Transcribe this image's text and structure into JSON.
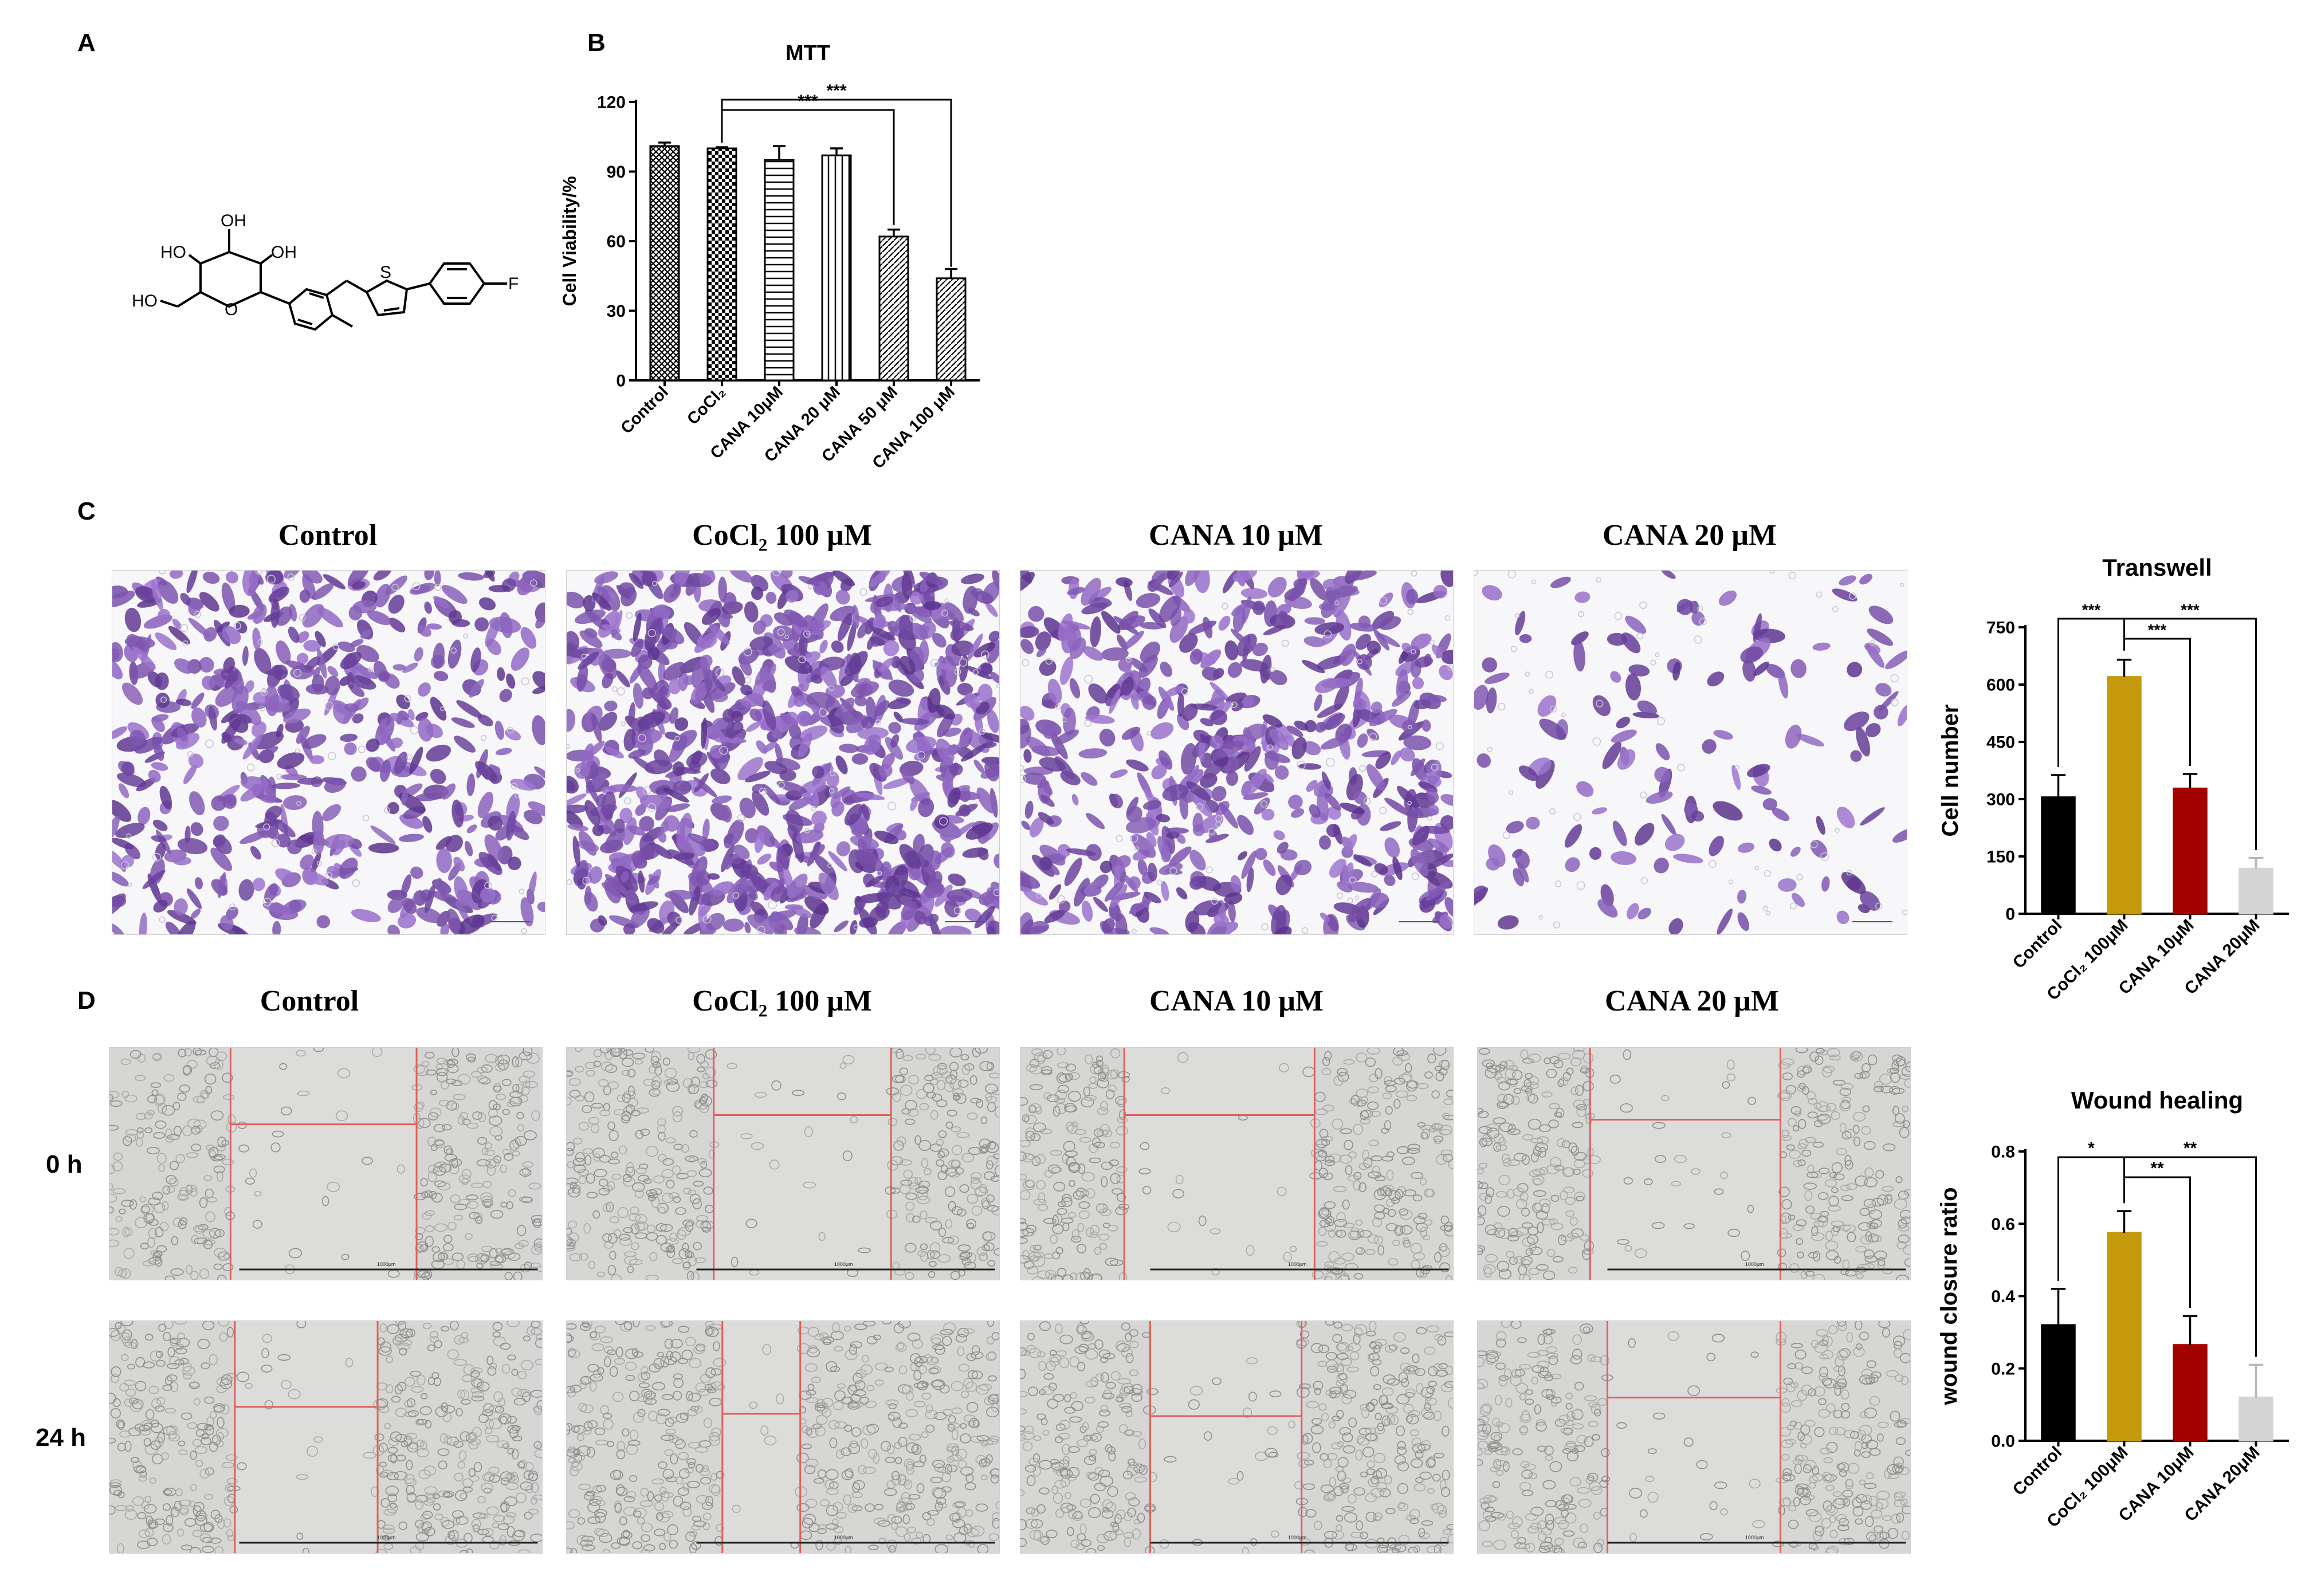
{
  "panels": {
    "a": {
      "letter": "A"
    },
    "b": {
      "letter": "B"
    },
    "c": {
      "letter": "C"
    },
    "d": {
      "letter": "D"
    }
  },
  "molecule": {
    "labels": [
      "OH",
      "HO",
      "OH",
      "HO",
      "O",
      "S",
      "F"
    ]
  },
  "colors": {
    "control": "#000000",
    "cocl2": "#c49a0c",
    "cana10": "#a30000",
    "cana20": "#d4d4d4",
    "crystal_violet": "#5a3b7e",
    "scratch_line": "#e0605a"
  },
  "transwell_images": {
    "titles": [
      "Control",
      "CoCl₂ 100 μM",
      "CANA 10 μM",
      "CANA 20 μM"
    ],
    "cell_density": [
      0.55,
      0.9,
      0.6,
      0.15
    ]
  },
  "wound_images": {
    "titles": [
      "Control",
      "CoCl₂ 100 μM",
      "CANA 10 μM",
      "CANA 20 μM"
    ],
    "rows": [
      "0 h",
      "24 h"
    ],
    "scale_label": "1000μm"
  },
  "chart_data": [
    {
      "type": "bar",
      "title": "MTT",
      "ylabel": "Cell Viability/%",
      "xlabel": "",
      "ylim": [
        0,
        120
      ],
      "yticks": [
        0,
        30,
        60,
        90,
        120
      ],
      "categories": [
        "Control",
        "CoCl₂",
        "CANA 10μM",
        "CANA 20 μM",
        "CANA 50 μM",
        "CANA 100 μM"
      ],
      "values": [
        101,
        100,
        95,
        97,
        62,
        44
      ],
      "errors": [
        1.5,
        0.5,
        6,
        3,
        3,
        4
      ],
      "patterns": [
        "crosshatch",
        "checker",
        "horizontal",
        "vertical",
        "diagonal",
        "diagonal"
      ],
      "significance": [
        {
          "from": 1,
          "to": 4,
          "label": "***"
        },
        {
          "from": 1,
          "to": 5,
          "label": "***"
        }
      ]
    },
    {
      "type": "bar",
      "title": "Transwell",
      "ylabel": "Cell number",
      "xlabel": "",
      "ylim": [
        0,
        750
      ],
      "yticks": [
        0,
        150,
        300,
        450,
        600,
        750
      ],
      "categories": [
        "Control",
        "CoCl₂ 100μM",
        "CANA 10μM",
        "CANA 20μM"
      ],
      "values": [
        305,
        620,
        328,
        118
      ],
      "errors": [
        58,
        45,
        38,
        28
      ],
      "significance": [
        {
          "from": 0,
          "to": 1,
          "label": "***"
        },
        {
          "from": 1,
          "to": 2,
          "label": "***"
        },
        {
          "from": 1,
          "to": 3,
          "label": "***"
        }
      ]
    },
    {
      "type": "bar",
      "title": "Wound healing",
      "ylabel": "wound closure ratio",
      "xlabel": "",
      "ylim": [
        0,
        0.8
      ],
      "yticks": [
        0.0,
        0.2,
        0.4,
        0.6,
        0.8
      ],
      "categories": [
        "Control",
        "CoCl₂ 100μM",
        "CANA 10μM",
        "CANA 20μM"
      ],
      "values": [
        0.32,
        0.575,
        0.265,
        0.12
      ],
      "errors": [
        0.1,
        0.06,
        0.08,
        0.09
      ],
      "significance": [
        {
          "from": 0,
          "to": 1,
          "label": "*"
        },
        {
          "from": 1,
          "to": 2,
          "label": "**"
        },
        {
          "from": 1,
          "to": 3,
          "label": "**"
        }
      ]
    }
  ]
}
